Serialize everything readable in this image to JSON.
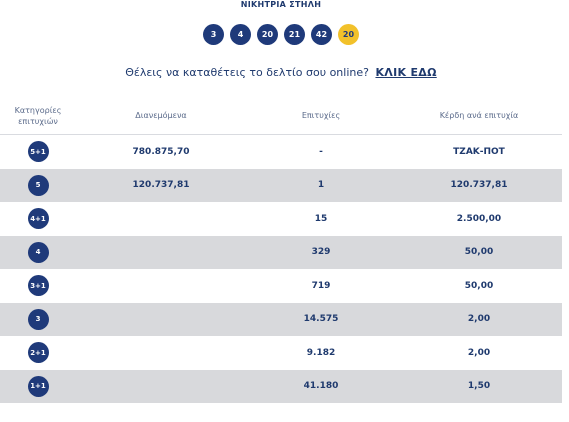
{
  "header": {
    "title": "ΝΙΚΗΤΡΙΑ ΣΤΗΛΗ"
  },
  "winning_numbers": [
    "3",
    "4",
    "20",
    "21",
    "42"
  ],
  "bonus_number": "20",
  "cta": {
    "text": "Θέλεις να καταθέτεις το δελτίο σου online?",
    "link": "ΚΛΙΚ ΕΔΩ"
  },
  "table": {
    "headers": {
      "category_line1": "Κατηγορίες",
      "category_line2": "επιτυχιών",
      "distributed": "Διανεμόμενα",
      "winners": "Επιτυχίες",
      "prize": "Κέρδη ανά επιτυχία"
    },
    "rows": [
      {
        "category": "5+1",
        "distributed": "780.875,70",
        "winners": "-",
        "prize": "ΤΖΑΚ-ΠΟΤ"
      },
      {
        "category": "5",
        "distributed": "120.737,81",
        "winners": "1",
        "prize": "120.737,81"
      },
      {
        "category": "4+1",
        "distributed": "",
        "winners": "15",
        "prize": "2.500,00"
      },
      {
        "category": "4",
        "distributed": "",
        "winners": "329",
        "prize": "50,00"
      },
      {
        "category": "3+1",
        "distributed": "",
        "winners": "719",
        "prize": "50,00"
      },
      {
        "category": "3",
        "distributed": "",
        "winners": "14.575",
        "prize": "2,00"
      },
      {
        "category": "2+1",
        "distributed": "",
        "winners": "9.182",
        "prize": "2,00"
      },
      {
        "category": "1+1",
        "distributed": "",
        "winners": "41.180",
        "prize": "1,50"
      }
    ]
  },
  "colors": {
    "ball": "#1f3a7a",
    "bonus_ball": "#f2c12a",
    "row_alt": "#d8d9dc",
    "text": "#1f3a6e"
  }
}
